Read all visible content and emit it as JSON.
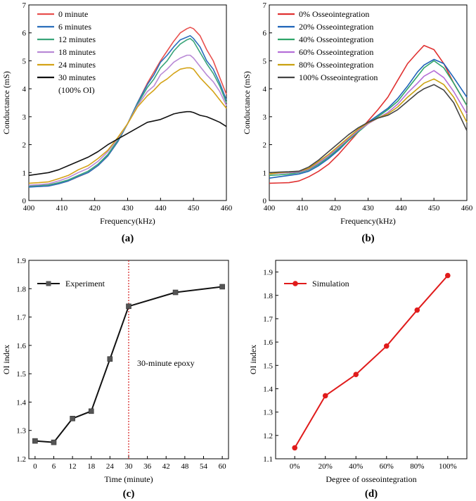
{
  "chart_data": [
    {
      "panel": "(a)",
      "type": "line",
      "xlabel": "Frequency(kHz)",
      "ylabel": "Conductance (mS)",
      "xlim": [
        400,
        460
      ],
      "ylim": [
        0,
        7
      ],
      "xticks": [
        "400",
        "410",
        "420",
        "430",
        "440",
        "450",
        "460"
      ],
      "yticks": [
        "0",
        "1",
        "2",
        "3",
        "4",
        "5",
        "6",
        "7"
      ],
      "legend_position": "top-left",
      "x": [
        400,
        403,
        406,
        409,
        412,
        415,
        418,
        421,
        424,
        427,
        430,
        433,
        436,
        438,
        440,
        442,
        444,
        446,
        448,
        449,
        450,
        452,
        454,
        456,
        458,
        460
      ],
      "series": [
        {
          "name": "0 minute",
          "color": "#e8504e",
          "values": [
            0.5,
            0.5,
            0.52,
            0.6,
            0.7,
            0.85,
            1.0,
            1.25,
            1.6,
            2.1,
            2.75,
            3.5,
            4.2,
            4.6,
            5.0,
            5.35,
            5.7,
            6.0,
            6.15,
            6.2,
            6.15,
            5.9,
            5.4,
            5.0,
            4.4,
            3.8
          ]
        },
        {
          "name": "6 minutes",
          "color": "#2a6ebb",
          "values": [
            0.48,
            0.5,
            0.52,
            0.6,
            0.7,
            0.86,
            1.0,
            1.25,
            1.6,
            2.1,
            2.75,
            3.5,
            4.15,
            4.5,
            4.95,
            5.2,
            5.5,
            5.75,
            5.85,
            5.9,
            5.8,
            5.5,
            5.0,
            4.7,
            4.2,
            3.6
          ]
        },
        {
          "name": "12 minutes",
          "color": "#3aa57a",
          "values": [
            0.52,
            0.54,
            0.56,
            0.64,
            0.74,
            0.9,
            1.05,
            1.3,
            1.65,
            2.15,
            2.75,
            3.45,
            4.05,
            4.35,
            4.75,
            5.0,
            5.35,
            5.6,
            5.75,
            5.8,
            5.7,
            5.3,
            4.9,
            4.55,
            4.1,
            3.5
          ]
        },
        {
          "name": "18 minutes",
          "color": "#b98ad6",
          "values": [
            0.55,
            0.57,
            0.6,
            0.7,
            0.82,
            1.0,
            1.15,
            1.4,
            1.75,
            2.2,
            2.75,
            3.4,
            3.9,
            4.1,
            4.5,
            4.7,
            4.95,
            5.1,
            5.2,
            5.2,
            5.1,
            4.8,
            4.5,
            4.25,
            3.9,
            3.4
          ]
        },
        {
          "name": "24 minutes",
          "color": "#d4a317",
          "values": [
            0.62,
            0.64,
            0.67,
            0.78,
            0.9,
            1.1,
            1.25,
            1.5,
            1.8,
            2.25,
            2.75,
            3.35,
            3.75,
            3.95,
            4.2,
            4.35,
            4.55,
            4.7,
            4.75,
            4.75,
            4.7,
            4.4,
            4.15,
            3.9,
            3.6,
            3.3
          ]
        },
        {
          "name": "30 minutes",
          "color": "#111111",
          "values": [
            0.9,
            0.95,
            1.0,
            1.1,
            1.25,
            1.4,
            1.55,
            1.75,
            2.0,
            2.2,
            2.4,
            2.6,
            2.8,
            2.85,
            2.9,
            3.0,
            3.1,
            3.15,
            3.18,
            3.18,
            3.15,
            3.05,
            3.0,
            2.9,
            2.8,
            2.65
          ]
        }
      ],
      "legend_note": "(100% OI)"
    },
    {
      "panel": "(b)",
      "type": "line",
      "xlabel": "Frequency(kHz)",
      "ylabel": "Conductance (mS)",
      "xlim": [
        400,
        460
      ],
      "ylim": [
        0,
        7
      ],
      "xticks": [
        "400",
        "410",
        "420",
        "430",
        "440",
        "450",
        "460"
      ],
      "yticks": [
        "0",
        "1",
        "2",
        "3",
        "4",
        "5",
        "6",
        "7"
      ],
      "legend_position": "top-left",
      "x": [
        400,
        403,
        406,
        409,
        412,
        415,
        418,
        421,
        424,
        427,
        430,
        433,
        436,
        439,
        442,
        445,
        447,
        450,
        453,
        456,
        460
      ],
      "series": [
        {
          "name": "0% Osseointegration",
          "color": "#e03131",
          "values": [
            0.62,
            0.63,
            0.64,
            0.7,
            0.85,
            1.05,
            1.3,
            1.65,
            2.05,
            2.45,
            2.85,
            3.25,
            3.7,
            4.3,
            4.9,
            5.3,
            5.55,
            5.4,
            4.9,
            4.2,
            3.4
          ]
        },
        {
          "name": "20% Osseointegration",
          "color": "#1d63b8",
          "values": [
            0.8,
            0.85,
            0.9,
            0.95,
            1.05,
            1.25,
            1.5,
            1.8,
            2.15,
            2.5,
            2.8,
            3.05,
            3.3,
            3.65,
            4.1,
            4.6,
            4.85,
            5.05,
            4.9,
            4.4,
            3.7
          ]
        },
        {
          "name": "40% Osseointegration",
          "color": "#2fa56a",
          "values": [
            0.9,
            0.92,
            0.95,
            1.0,
            1.1,
            1.3,
            1.55,
            1.85,
            2.15,
            2.45,
            2.75,
            3.0,
            3.25,
            3.55,
            4.0,
            4.45,
            4.75,
            5.0,
            4.75,
            4.2,
            3.4
          ]
        },
        {
          "name": "60% Osseointegration",
          "color": "#b56fd8",
          "values": [
            0.95,
            0.98,
            1.0,
            1.02,
            1.12,
            1.35,
            1.6,
            1.9,
            2.2,
            2.5,
            2.75,
            2.95,
            3.15,
            3.45,
            3.85,
            4.2,
            4.45,
            4.65,
            4.4,
            3.9,
            3.1
          ]
        },
        {
          "name": "80% Osseointegration",
          "color": "#c9a10f",
          "values": [
            0.95,
            1.0,
            1.02,
            1.05,
            1.15,
            1.4,
            1.65,
            1.95,
            2.25,
            2.55,
            2.78,
            2.95,
            3.1,
            3.35,
            3.7,
            4.0,
            4.2,
            4.35,
            4.15,
            3.7,
            2.8
          ]
        },
        {
          "name": "100% Osseointegration",
          "color": "#444444",
          "values": [
            1.0,
            1.02,
            1.03,
            1.05,
            1.2,
            1.45,
            1.75,
            2.05,
            2.35,
            2.6,
            2.8,
            2.95,
            3.05,
            3.25,
            3.55,
            3.85,
            4.0,
            4.15,
            3.95,
            3.5,
            2.5
          ]
        }
      ]
    },
    {
      "panel": "(c)",
      "type": "line",
      "xlabel": "Time (minute)",
      "ylabel": "OI index",
      "xlim": [
        -2,
        62
      ],
      "ylim": [
        1.2,
        1.9
      ],
      "xticks": [
        "0",
        "6",
        "12",
        "18",
        "24",
        "30",
        "36",
        "42",
        "48",
        "54",
        "60"
      ],
      "yticks": [
        "1.2",
        "1.3",
        "1.4",
        "1.5",
        "1.6",
        "1.7",
        "1.8",
        "1.9"
      ],
      "legend_position": "top-left",
      "series": [
        {
          "name": "Experiment",
          "color": "#111111",
          "marker": "square",
          "x": [
            0,
            6,
            12,
            18,
            24,
            30,
            45,
            60
          ],
          "values": [
            1.263,
            1.258,
            1.342,
            1.368,
            1.552,
            1.738,
            1.787,
            1.807
          ]
        }
      ],
      "vline": {
        "x": 30,
        "color": "#d62020",
        "label": "30-minute epoxy"
      }
    },
    {
      "panel": "(d)",
      "type": "line",
      "xlabel": "Degree of osseointegration",
      "ylabel": "OI index",
      "ylim": [
        1.1,
        1.95
      ],
      "categories": [
        "0%",
        "20%",
        "40%",
        "60%",
        "80%",
        "100%"
      ],
      "yticks": [
        "1.1",
        "1.2",
        "1.3",
        "1.4",
        "1.5",
        "1.6",
        "1.7",
        "1.8",
        "1.9"
      ],
      "legend_position": "top-left",
      "series": [
        {
          "name": "Simulation",
          "color": "#e01b1b",
          "marker": "circle",
          "values": [
            1.147,
            1.37,
            1.461,
            1.583,
            1.737,
            1.885
          ]
        }
      ]
    }
  ]
}
